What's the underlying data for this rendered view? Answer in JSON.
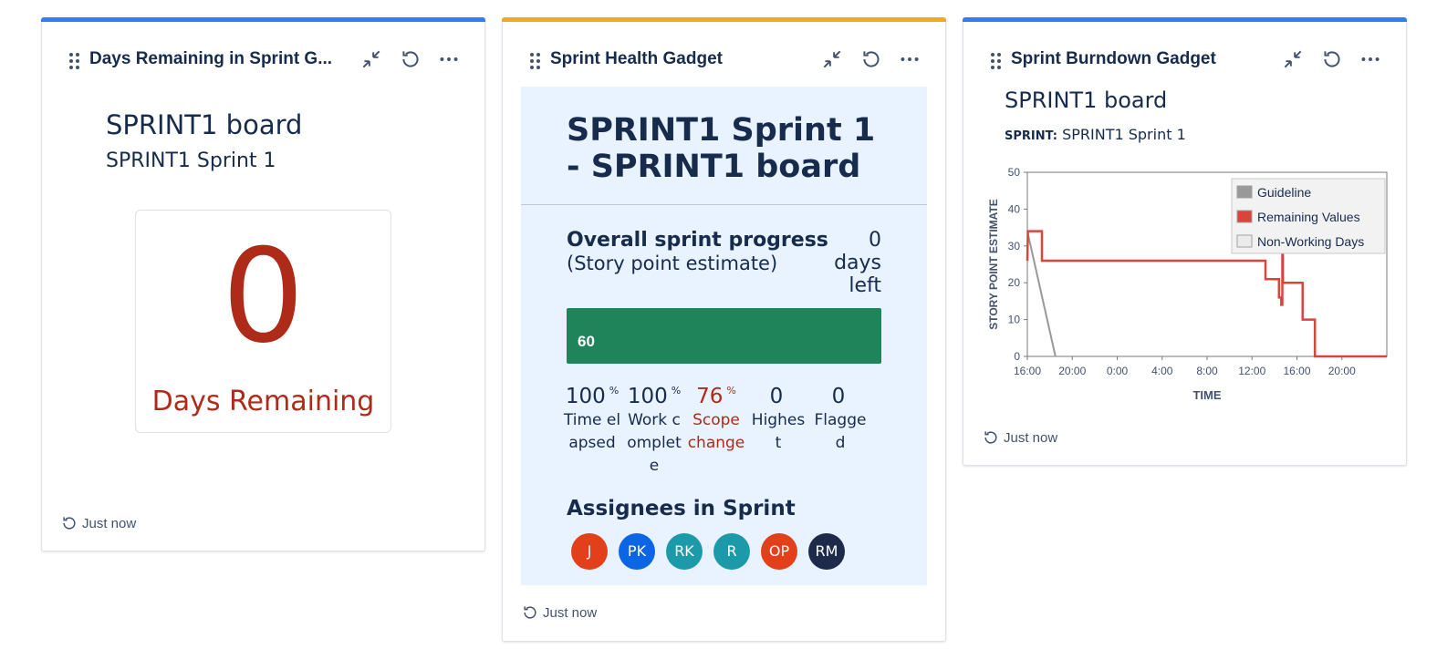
{
  "gadget1": {
    "title": "Days Remaining in Sprint G...",
    "board": "SPRINT1 board",
    "sprint": "SPRINT1 Sprint 1",
    "days_value": "0",
    "days_label": "Days Remaining",
    "footer": "Just now",
    "accent": "#2f7ff2"
  },
  "gadget2": {
    "title": "Sprint Health Gadget",
    "panel_title": "SPRINT1 Sprint 1 - SPRINT1 board",
    "progress_title": "Overall sprint progress",
    "progress_sub": "(Story point estimate)",
    "days_left_value": "0",
    "days_left_line1": "days",
    "days_left_line2": "left",
    "progress_percent": 100,
    "progress_bar_label": "60",
    "stats": [
      {
        "value": "100",
        "unit": "%",
        "label": "Time elapsed",
        "warn": false
      },
      {
        "value": "100",
        "unit": "%",
        "label": "Work complete",
        "warn": false
      },
      {
        "value": "76",
        "unit": "%",
        "label": "Scope change",
        "warn": true
      },
      {
        "value": "0",
        "unit": "",
        "label": "Highest",
        "warn": false
      },
      {
        "value": "0",
        "unit": "",
        "label": "Flagged",
        "warn": false
      }
    ],
    "assignees_title": "Assignees in Sprint",
    "assignees": [
      {
        "initials": "J",
        "color": "#e2401a"
      },
      {
        "initials": "PK",
        "color": "#0c66e4"
      },
      {
        "initials": "RK",
        "color": "#1d9aaa"
      },
      {
        "initials": "R",
        "color": "#1d9aaa"
      },
      {
        "initials": "OP",
        "color": "#e2401a"
      },
      {
        "initials": "RM",
        "color": "#1e2a4a"
      }
    ],
    "footer": "Just now",
    "accent": "#f5a623"
  },
  "gadget3": {
    "title": "Sprint Burndown Gadget",
    "board": "SPRINT1 board",
    "sprint_label": "SPRINT:",
    "sprint_value": "SPRINT1 Sprint 1",
    "footer": "Just now",
    "accent": "#2f7ff2"
  },
  "chart_data": {
    "type": "line",
    "xlabel": "TIME",
    "ylabel": "STORY POINT ESTIMATE",
    "ylim": [
      0,
      50
    ],
    "yticks": [
      0,
      10,
      20,
      30,
      40,
      50
    ],
    "xticks": [
      "16:00",
      "20:00",
      "0:00",
      "4:00",
      "8:00",
      "12:00",
      "16:00",
      "20:00"
    ],
    "xlim_hours": [
      16,
      48
    ],
    "legend": [
      "Guideline",
      "Remaining Values",
      "Non-Working Days"
    ],
    "legend_position": "top-right",
    "series": [
      {
        "name": "Guideline",
        "color": "#999999",
        "points": [
          [
            16,
            34
          ],
          [
            18.5,
            0
          ]
        ]
      },
      {
        "name": "Remaining Values",
        "color": "#d9453d",
        "points": [
          [
            16,
            26
          ],
          [
            16.05,
            34
          ],
          [
            17.3,
            34
          ],
          [
            17.3,
            26
          ],
          [
            37.2,
            26
          ],
          [
            37.2,
            21
          ],
          [
            38.4,
            21
          ],
          [
            38.4,
            16
          ],
          [
            38.6,
            16
          ],
          [
            38.6,
            14
          ],
          [
            38.7,
            14
          ],
          [
            38.7,
            28
          ],
          [
            38.75,
            28
          ],
          [
            38.75,
            20
          ],
          [
            40.5,
            20
          ],
          [
            40.5,
            10
          ],
          [
            41.6,
            10
          ],
          [
            41.6,
            0
          ],
          [
            48,
            0
          ]
        ]
      }
    ]
  }
}
